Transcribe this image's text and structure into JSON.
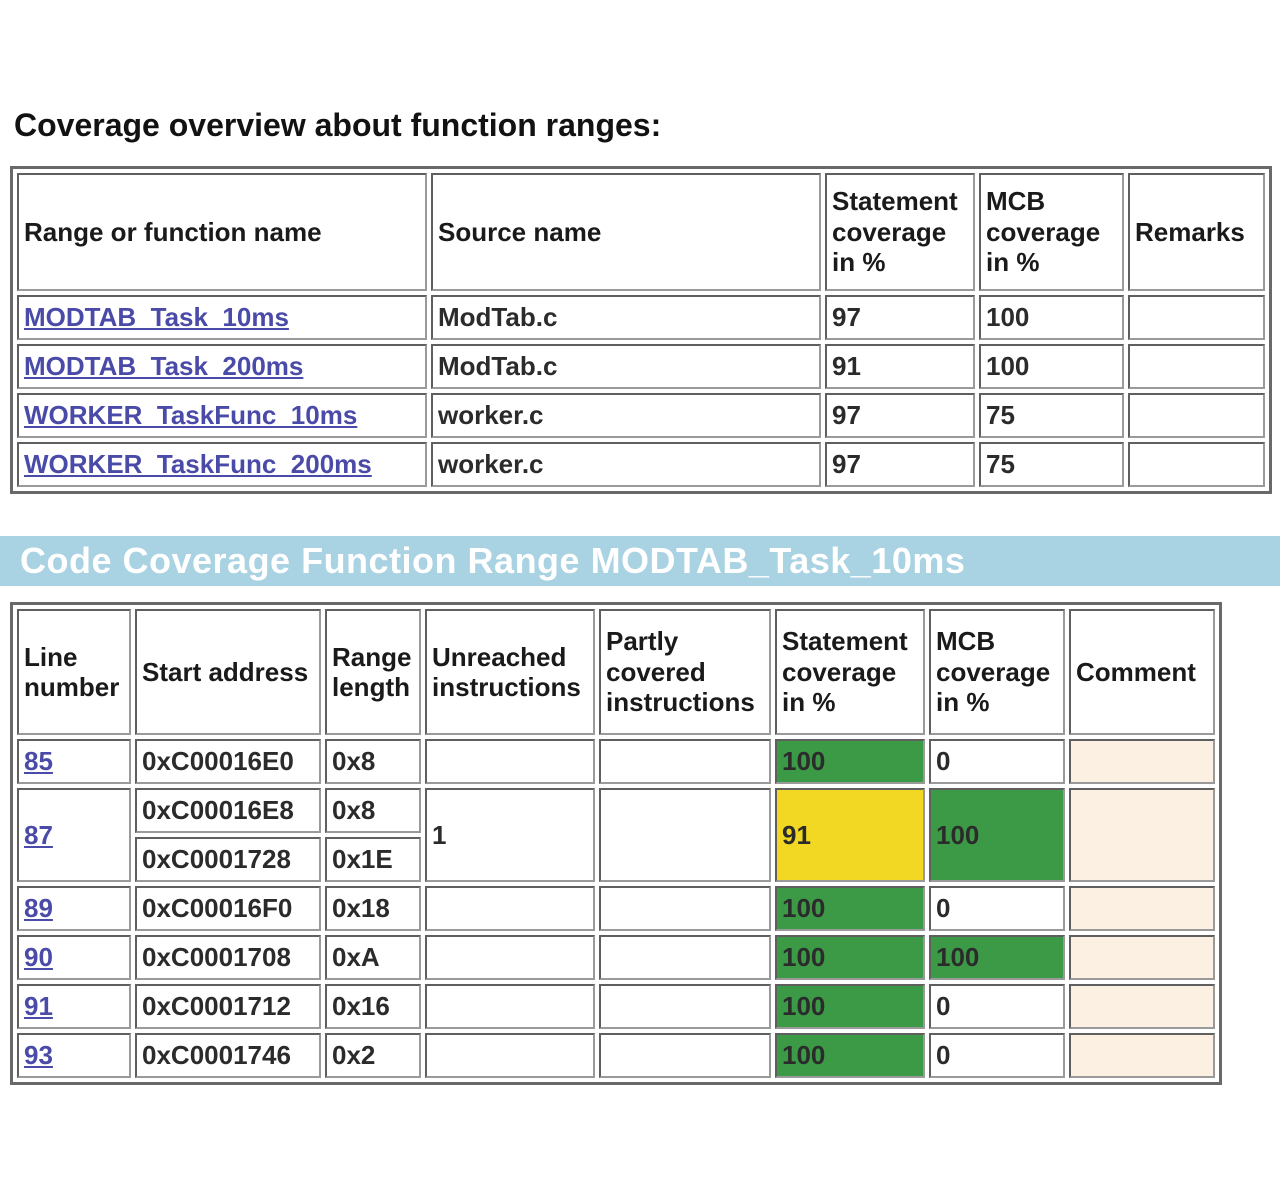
{
  "page": {
    "heading": "Coverage overview about function ranges:",
    "banner": "Code Coverage Function Range MODTAB_Task_10ms"
  },
  "colors": {
    "green": "#3c9a47",
    "yellow": "#f2d822",
    "comment_bg": "#fbf0e2",
    "banner_bg": "#a9d3e2",
    "link": "#4a4aa8"
  },
  "overview_table": {
    "headers": [
      {
        "key": "range-name",
        "label": "Range or function name"
      },
      {
        "key": "source-name",
        "label": "Source name"
      },
      {
        "key": "stmt-coverage",
        "label": "Statement coverage in %"
      },
      {
        "key": "mcb-coverage",
        "label": "MCB coverage in %"
      },
      {
        "key": "remarks",
        "label": "Remarks"
      }
    ],
    "rows": [
      {
        "name": "MODTAB_Task_10ms",
        "source": "ModTab.c",
        "stmt": "97",
        "mcb": "100",
        "remarks": ""
      },
      {
        "name": "MODTAB_Task_200ms",
        "source": "ModTab.c",
        "stmt": "91",
        "mcb": "100",
        "remarks": ""
      },
      {
        "name": "WORKER_TaskFunc_10ms",
        "source": "worker.c",
        "stmt": "97",
        "mcb": "75",
        "remarks": ""
      },
      {
        "name": "WORKER_TaskFunc_200ms",
        "source": "worker.c",
        "stmt": "97",
        "mcb": "75",
        "remarks": ""
      }
    ]
  },
  "detail_table": {
    "headers": [
      {
        "key": "line-number",
        "label": "Line number"
      },
      {
        "key": "start-address",
        "label": "Start address"
      },
      {
        "key": "range-length",
        "label": "Range length"
      },
      {
        "key": "unreached",
        "label": "Unreached instructions"
      },
      {
        "key": "partly-covered",
        "label": "Partly covered instructions"
      },
      {
        "key": "stmt-coverage",
        "label": "Statement coverage in %"
      },
      {
        "key": "mcb-coverage",
        "label": "MCB coverage in %"
      },
      {
        "key": "comment",
        "label": "Comment"
      }
    ],
    "rows": [
      {
        "line": "85",
        "segments": [
          {
            "addr": "0xC00016E0",
            "len": "0x8"
          }
        ],
        "unreached": "",
        "partly": "",
        "stmt": "100",
        "stmt_bg": "green",
        "mcb": "0",
        "mcb_bg": "none"
      },
      {
        "line": "87",
        "segments": [
          {
            "addr": "0xC00016E8",
            "len": "0x8"
          },
          {
            "addr": "0xC0001728",
            "len": "0x1E"
          }
        ],
        "unreached": "1",
        "partly": "",
        "stmt": "91",
        "stmt_bg": "yellow",
        "mcb": "100",
        "mcb_bg": "green"
      },
      {
        "line": "89",
        "segments": [
          {
            "addr": "0xC00016F0",
            "len": "0x18"
          }
        ],
        "unreached": "",
        "partly": "",
        "stmt": "100",
        "stmt_bg": "green",
        "mcb": "0",
        "mcb_bg": "none"
      },
      {
        "line": "90",
        "segments": [
          {
            "addr": "0xC0001708",
            "len": "0xA"
          }
        ],
        "unreached": "",
        "partly": "",
        "stmt": "100",
        "stmt_bg": "green",
        "mcb": "100",
        "mcb_bg": "green"
      },
      {
        "line": "91",
        "segments": [
          {
            "addr": "0xC0001712",
            "len": "0x16"
          }
        ],
        "unreached": "",
        "partly": "",
        "stmt": "100",
        "stmt_bg": "green",
        "mcb": "0",
        "mcb_bg": "none"
      },
      {
        "line": "93",
        "segments": [
          {
            "addr": "0xC0001746",
            "len": "0x2"
          }
        ],
        "unreached": "",
        "partly": "",
        "stmt": "100",
        "stmt_bg": "green",
        "mcb": "0",
        "mcb_bg": "none"
      }
    ]
  }
}
